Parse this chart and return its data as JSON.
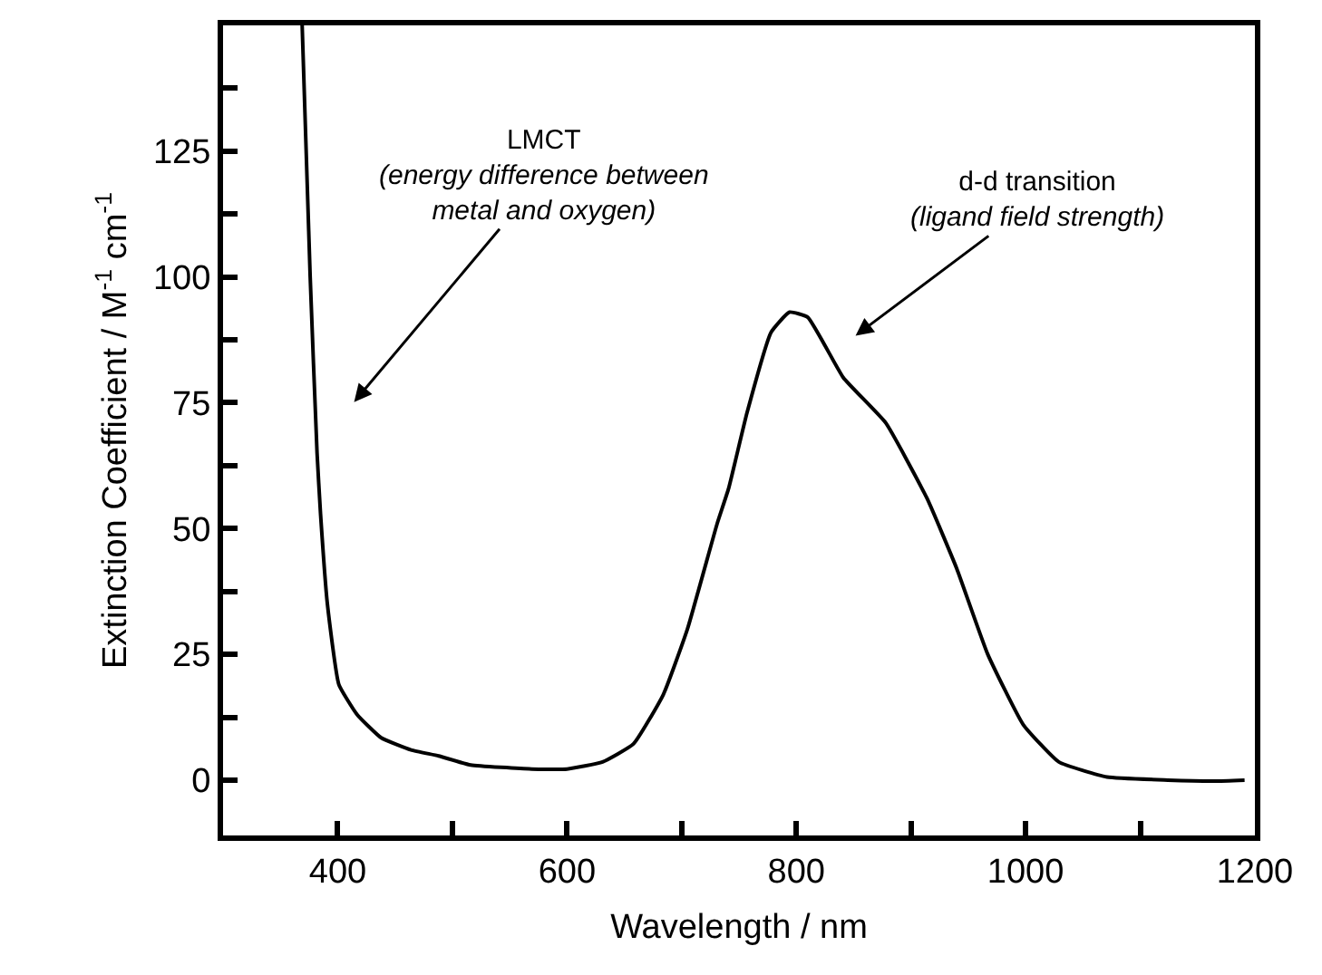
{
  "chart_data": {
    "type": "line",
    "xlabel": "Wavelength / nm",
    "ylabel": "Extinction Coefficient / M$^{-1}$ cm$^{-1}$",
    "xlim": [
      300,
      1200
    ],
    "ylim": [
      -11,
      150
    ],
    "xticks": [
      400,
      {
        "value": 500,
        "label": null
      },
      600,
      {
        "value": 700,
        "label": null
      },
      800,
      {
        "value": 900,
        "label": null
      },
      1000,
      {
        "value": 1100,
        "label": null
      },
      1200
    ],
    "yticks": [
      0,
      {
        "value": 12.5,
        "label": null
      },
      25,
      {
        "value": 37.5,
        "label": null
      },
      50,
      {
        "value": 62.5,
        "label": null
      },
      75,
      {
        "value": 87.5,
        "label": null
      },
      100,
      {
        "value": 112.5,
        "label": null
      },
      125,
      {
        "value": 137.5,
        "label": null
      }
    ],
    "marker": "none",
    "line_style": "solid",
    "series": [
      {
        "color": "#000000",
        "x": [
          369,
          376,
          382,
          385,
          391,
          401,
          417,
          438,
          464,
          488,
          516,
          569,
          600,
          631,
          658,
          684,
          705,
          731,
          741,
          757,
          778,
          794,
          810,
          841,
          878,
          914,
          940,
          967,
          998,
          1029,
          1071,
          1124,
          1165,
          1191
        ],
        "values": [
          150,
          100,
          65,
          53,
          35,
          19,
          13,
          8.4,
          6,
          4.8,
          3,
          2.2,
          2.2,
          3.6,
          7.2,
          17,
          30,
          51,
          58,
          73,
          89,
          93,
          92,
          80,
          71,
          56,
          42,
          25,
          11,
          3.6,
          0.6,
          0,
          -0.2,
          0
        ]
      }
    ],
    "annotations": [
      "LMCT\n(energy difference between\nmetal and oxygen)",
      "d-d transition\n(ligand field strength)"
    ]
  }
}
